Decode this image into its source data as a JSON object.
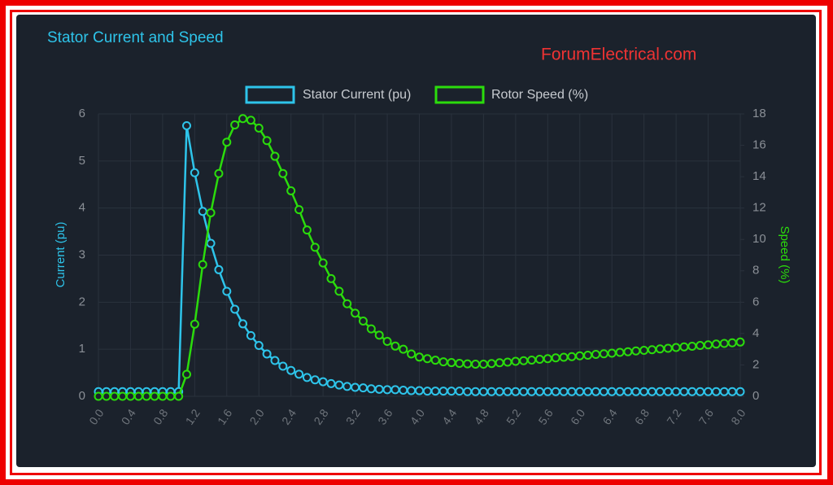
{
  "chart_data": {
    "type": "line",
    "title": "Stator Current and Speed",
    "watermark": "ForumElectrical.com",
    "y_label": "Current (pu)",
    "y2_label": "Speed (%)",
    "grid": true,
    "x": [
      0,
      0.1,
      0.2,
      0.3,
      0.4,
      0.5,
      0.6,
      0.7,
      0.8,
      0.9,
      1.0,
      1.1,
      1.2,
      1.3,
      1.4,
      1.5,
      1.6,
      1.7,
      1.8,
      1.9,
      2.0,
      2.1,
      2.2,
      2.3,
      2.4,
      2.5,
      2.6,
      2.7,
      2.8,
      2.9,
      3.0,
      3.1,
      3.2,
      3.3,
      3.4,
      3.5,
      3.6,
      3.7,
      3.8,
      3.9,
      4.0,
      4.1,
      4.2,
      4.3,
      4.4,
      4.5,
      4.6,
      4.7,
      4.8,
      4.9,
      5.0,
      5.1,
      5.2,
      5.3,
      5.4,
      5.5,
      5.6,
      5.7,
      5.8,
      5.9,
      6.0,
      6.1,
      6.2,
      6.3,
      6.4,
      6.5,
      6.6,
      6.7,
      6.8,
      6.9,
      7.0,
      7.1,
      7.2,
      7.3,
      7.4,
      7.5,
      7.6,
      7.7,
      7.8,
      7.9,
      8.0
    ],
    "xlim": [
      0,
      8
    ],
    "xticks": [
      {
        "value": 0,
        "label": "0.0"
      },
      0.4,
      0.8,
      1.2,
      1.6,
      {
        "value": 2,
        "label": "2.0"
      },
      2.4,
      2.8,
      3.2,
      3.6,
      {
        "value": 4,
        "label": "4.0"
      },
      4.4,
      4.8,
      5.2,
      5.6,
      {
        "value": 6,
        "label": "6.0"
      },
      6.4,
      6.8,
      7.2,
      7.6,
      {
        "value": 8,
        "label": "8.0"
      }
    ],
    "ylim": [
      0,
      6
    ],
    "yticks": [
      0,
      1,
      2,
      3,
      4,
      5,
      6
    ],
    "y2lim": [
      0,
      18
    ],
    "y2ticks": [
      0,
      2,
      4,
      6,
      8,
      10,
      12,
      14,
      16,
      18
    ],
    "series": [
      {
        "name": "Stator Current (pu)",
        "color": "#2ec4ea",
        "axis": "y",
        "values": [
          0.1,
          0.1,
          0.1,
          0.1,
          0.1,
          0.1,
          0.1,
          0.1,
          0.1,
          0.1,
          0.1,
          5.75,
          4.75,
          3.93,
          3.25,
          2.69,
          2.23,
          1.85,
          1.54,
          1.29,
          1.08,
          0.9,
          0.76,
          0.64,
          0.55,
          0.47,
          0.4,
          0.35,
          0.31,
          0.27,
          0.24,
          0.21,
          0.19,
          0.18,
          0.16,
          0.15,
          0.14,
          0.14,
          0.13,
          0.12,
          0.12,
          0.11,
          0.11,
          0.11,
          0.11,
          0.11,
          0.1,
          0.1,
          0.1,
          0.1,
          0.1,
          0.1,
          0.1,
          0.1,
          0.1,
          0.1,
          0.1,
          0.1,
          0.1,
          0.1,
          0.1,
          0.1,
          0.1,
          0.1,
          0.1,
          0.1,
          0.1,
          0.1,
          0.1,
          0.1,
          0.1,
          0.1,
          0.1,
          0.1,
          0.1,
          0.1,
          0.1,
          0.1,
          0.1,
          0.1,
          0.1
        ]
      },
      {
        "name": "Rotor Speed (%)",
        "color": "#2bdc0c",
        "axis": "y2",
        "values": [
          0,
          0,
          0,
          0,
          0,
          0,
          0,
          0,
          0,
          0,
          0,
          1.4,
          4.6,
          8.4,
          11.7,
          14.2,
          16.2,
          17.3,
          17.7,
          17.6,
          17.1,
          16.3,
          15.3,
          14.2,
          13.1,
          11.9,
          10.6,
          9.5,
          8.5,
          7.5,
          6.7,
          5.9,
          5.3,
          4.8,
          4.3,
          3.9,
          3.5,
          3.2,
          3.0,
          2.7,
          2.5,
          2.4,
          2.3,
          2.2,
          2.15,
          2.1,
          2.07,
          2.05,
          2.05,
          2.09,
          2.14,
          2.18,
          2.23,
          2.27,
          2.31,
          2.36,
          2.4,
          2.45,
          2.49,
          2.53,
          2.58,
          2.62,
          2.67,
          2.71,
          2.75,
          2.8,
          2.84,
          2.89,
          2.93,
          2.97,
          3.02,
          3.06,
          3.11,
          3.15,
          3.19,
          3.24,
          3.28,
          3.33,
          3.37,
          3.41,
          3.46
        ]
      }
    ]
  }
}
